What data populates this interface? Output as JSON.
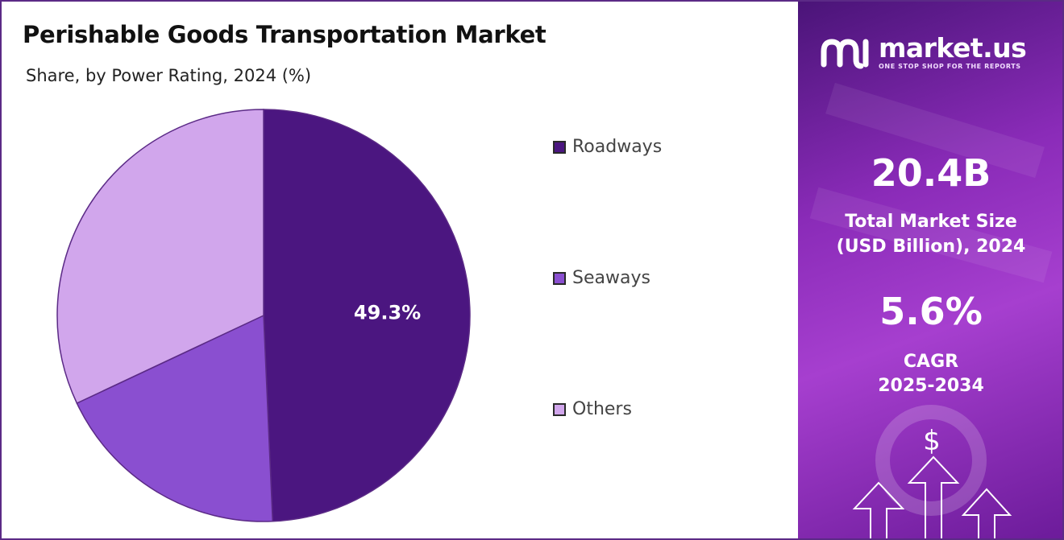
{
  "title": "Perishable Goods Transportation Market",
  "subtitle": "Share, by Power Rating, 2024 (%)",
  "chart_data": {
    "type": "pie",
    "title": "Perishable Goods Transportation Market",
    "subtitle": "Share, by Power Rating, 2024 (%)",
    "start_angle_deg": 0,
    "direction": "clockwise",
    "slices": [
      {
        "name": "Roadways",
        "value": 49.3,
        "color": "#4b1680",
        "label": "49.3%"
      },
      {
        "name": "Seaways",
        "value": 18.7,
        "color": "#8a4fd0",
        "label": ""
      },
      {
        "name": "Others",
        "value": 32.0,
        "color": "#d1a6ec",
        "label": ""
      }
    ],
    "legend_position": "right"
  },
  "legend": {
    "items": [
      {
        "label": "Roadways",
        "color": "#4b1680"
      },
      {
        "label": "Seaways",
        "color": "#8a4fd0"
      },
      {
        "label": "Others",
        "color": "#d1a6ec"
      }
    ]
  },
  "sidebar": {
    "brand_name": "market.us",
    "brand_tagline": "ONE STOP SHOP FOR THE REPORTS",
    "logo_icon": "market-us-logo",
    "market_size_value": "20.4B",
    "market_size_label_1": "Total Market Size",
    "market_size_label_2": "(USD Billion), 2024",
    "cagr_value": "5.6%",
    "cagr_label_1": "CAGR",
    "cagr_label_2": "2025-2034",
    "dollar_symbol": "$"
  }
}
